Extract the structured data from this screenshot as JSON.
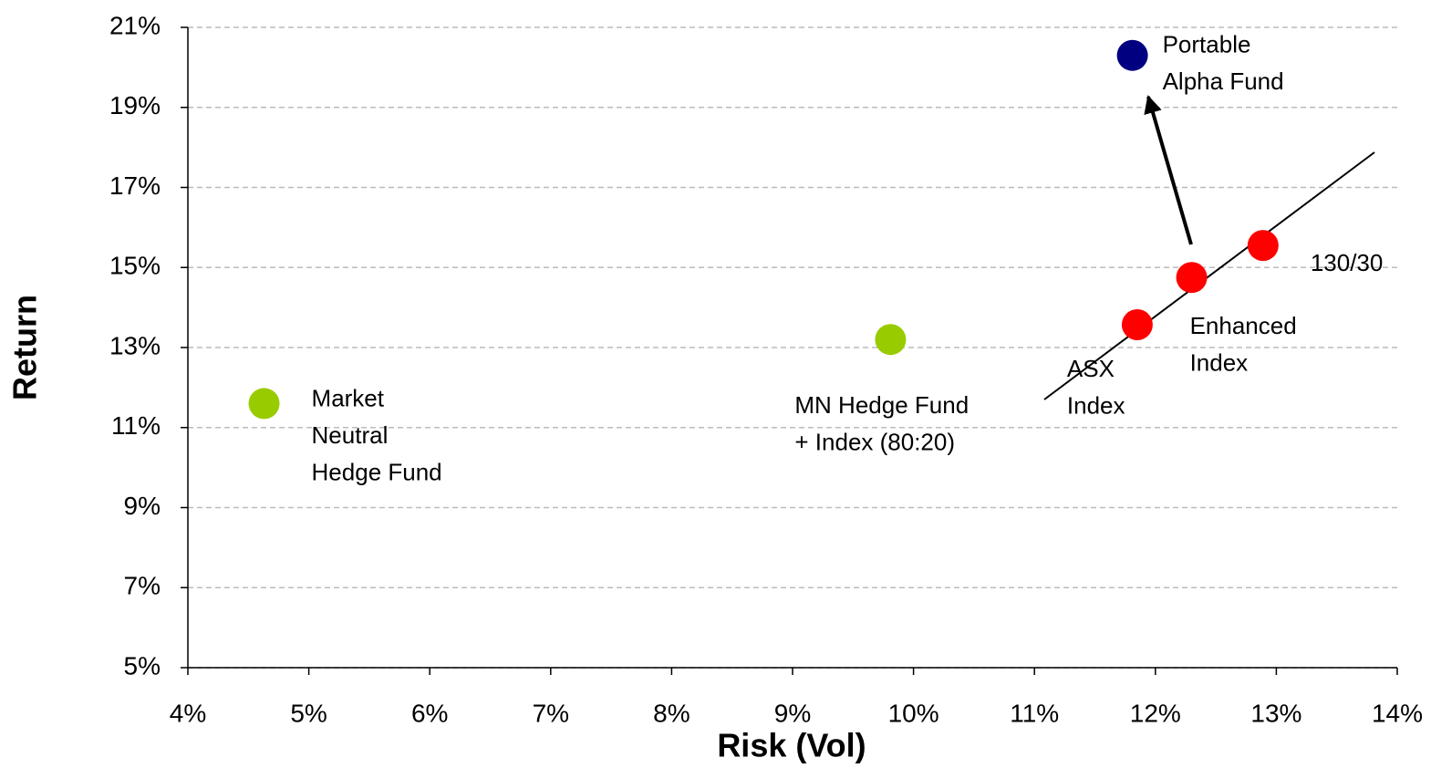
{
  "chart_data": {
    "type": "scatter",
    "x_label": "Risk (Vol)",
    "y_label": "Return",
    "xlim": [
      4,
      14
    ],
    "ylim": [
      5,
      21
    ],
    "xticks": [
      {
        "value": 4,
        "label": "4%"
      },
      {
        "value": 5,
        "label": "5%"
      },
      {
        "value": 6,
        "label": "6%"
      },
      {
        "value": 7,
        "label": "7%"
      },
      {
        "value": 8,
        "label": "8%"
      },
      {
        "value": 9,
        "label": "9%"
      },
      {
        "value": 10,
        "label": "10%"
      },
      {
        "value": 11,
        "label": "11%"
      },
      {
        "value": 12,
        "label": "12%"
      },
      {
        "value": 13,
        "label": "13%"
      },
      {
        "value": 14,
        "label": "14%"
      }
    ],
    "yticks": [
      {
        "value": 5,
        "label": "5%"
      },
      {
        "value": 7,
        "label": "7%"
      },
      {
        "value": 9,
        "label": "9%"
      },
      {
        "value": 11,
        "label": "11%"
      },
      {
        "value": 13,
        "label": "13%"
      },
      {
        "value": 15,
        "label": "15%"
      },
      {
        "value": 17,
        "label": "17%"
      },
      {
        "value": 19,
        "label": "19%"
      },
      {
        "value": 21,
        "label": "21%"
      }
    ],
    "grid": true,
    "points": [
      {
        "label": [
          "Market",
          "Neutral",
          "Hedge Fund"
        ],
        "x": 4.63,
        "y": 11.6,
        "color": "#99cc00"
      },
      {
        "label": [
          "MN Hedge Fund",
          "+ Index (80:20)"
        ],
        "x": 9.81,
        "y": 13.2,
        "color": "#99cc00"
      },
      {
        "label": [
          "ASX",
          "Index"
        ],
        "x": 11.85,
        "y": 13.57,
        "color": "#ff0000"
      },
      {
        "label": [
          "Enhanced",
          "Index"
        ],
        "x": 12.3,
        "y": 14.75,
        "color": "#ff0000"
      },
      {
        "label": [
          "130/30"
        ],
        "x": 12.89,
        "y": 15.55,
        "color": "#ff0000"
      },
      {
        "label": [
          "Portable",
          "Alpha  Fund"
        ],
        "x": 11.81,
        "y": 20.3,
        "color": "#000080"
      }
    ]
  }
}
